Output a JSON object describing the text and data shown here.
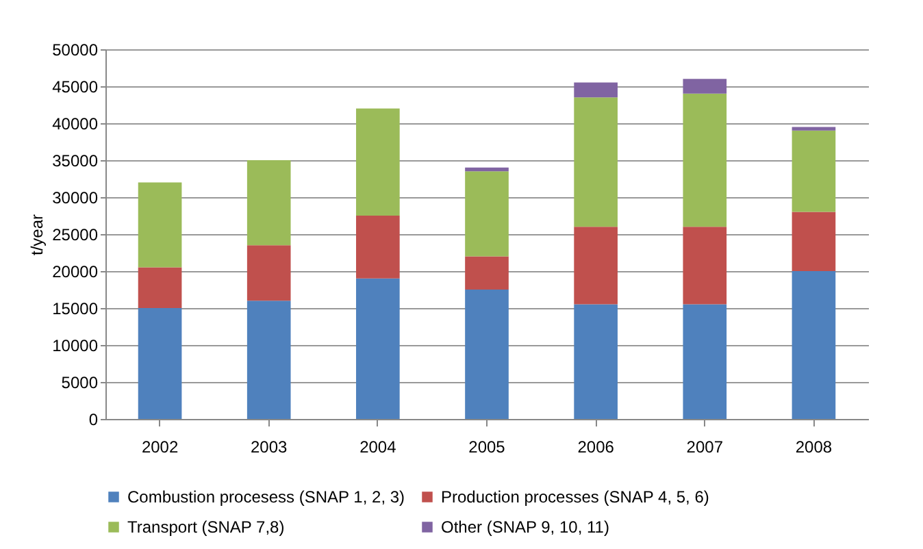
{
  "chart_data": {
    "type": "bar",
    "stacked": true,
    "ylabel": "t/year",
    "categories": [
      "2002",
      "2003",
      "2004",
      "2005",
      "2006",
      "2007",
      "2008"
    ],
    "series": [
      {
        "name": "Combustion procesess (SNAP 1, 2, 3)",
        "color": "#4f81bd",
        "values": [
          15000,
          16000,
          19000,
          17500,
          15500,
          15500,
          20000
        ]
      },
      {
        "name": "Production processes (SNAP 4, 5, 6)",
        "color": "#c0504d",
        "values": [
          5500,
          7500,
          8500,
          4500,
          10500,
          10500,
          8000
        ]
      },
      {
        "name": "Transport (SNAP 7,8)",
        "color": "#9bbb59",
        "values": [
          11500,
          11500,
          14500,
          11500,
          17500,
          18000,
          11000
        ]
      },
      {
        "name": "Other (SNAP 9, 10, 11)",
        "color": "#8064a2",
        "values": [
          0,
          0,
          0,
          500,
          2000,
          2000,
          500
        ]
      }
    ],
    "ylim": [
      0,
      50000
    ],
    "yticks": [
      0,
      5000,
      10000,
      15000,
      20000,
      25000,
      30000,
      35000,
      40000,
      45000,
      50000
    ],
    "grid": "y",
    "legend": "bottom"
  }
}
